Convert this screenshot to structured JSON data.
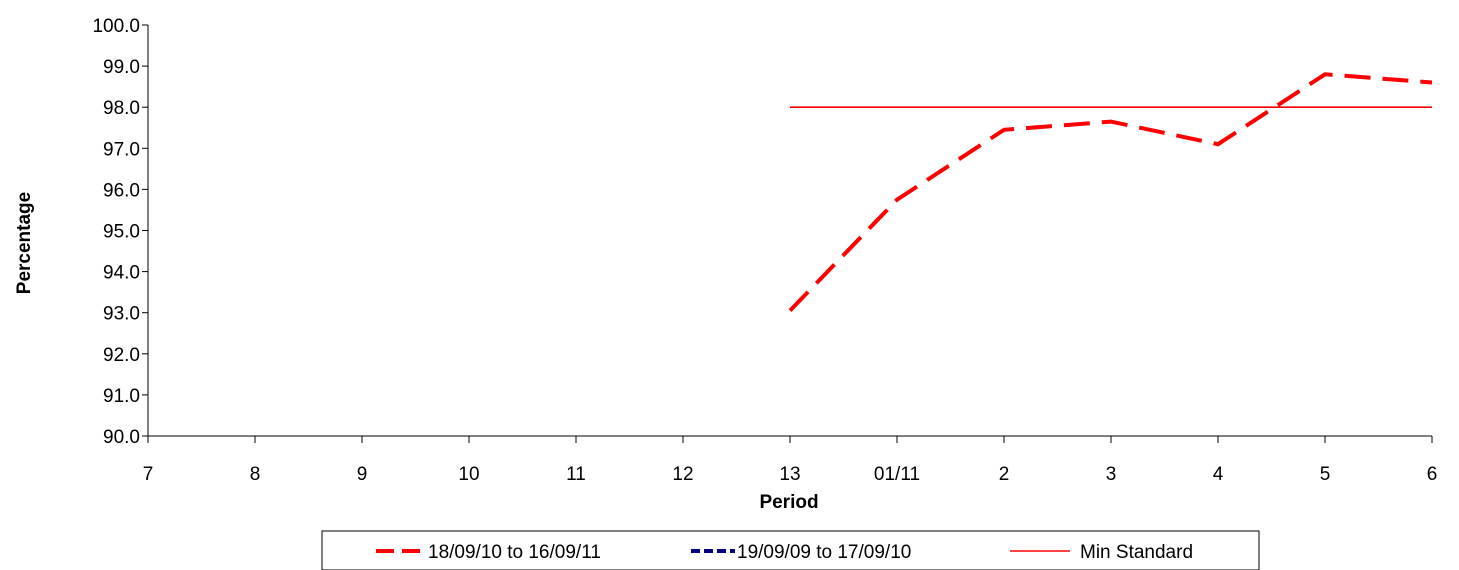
{
  "chart_data": {
    "type": "line",
    "title": "",
    "xlabel": "Period",
    "ylabel": "Percentage",
    "categories": [
      "7",
      "8",
      "9",
      "10",
      "11",
      "12",
      "13",
      "01/11",
      "2",
      "3",
      "4",
      "5",
      "6"
    ],
    "ylim": [
      90.0,
      100.0
    ],
    "yticks": [
      "90.0",
      "91.0",
      "92.0",
      "93.0",
      "94.0",
      "95.0",
      "96.0",
      "97.0",
      "98.0",
      "99.0",
      "100.0"
    ],
    "grid": false,
    "legend_position": "bottom",
    "series": [
      {
        "name": "18/09/10 to 16/09/11",
        "color": "#ff0000",
        "style": "long-dash",
        "values": [
          null,
          null,
          null,
          null,
          null,
          null,
          93.05,
          95.75,
          97.45,
          97.65,
          97.1,
          98.8,
          98.6
        ]
      },
      {
        "name": "19/09/09 to 17/09/10",
        "color": "#000080",
        "style": "short-dash",
        "values": [
          null,
          null,
          null,
          null,
          null,
          null,
          null,
          null,
          null,
          null,
          null,
          null,
          null
        ]
      },
      {
        "name": "Min Standard",
        "color": "#ff0000",
        "style": "solid",
        "values": [
          null,
          null,
          null,
          null,
          null,
          null,
          98.0,
          98.0,
          98.0,
          98.0,
          98.0,
          98.0,
          98.0
        ]
      }
    ]
  }
}
